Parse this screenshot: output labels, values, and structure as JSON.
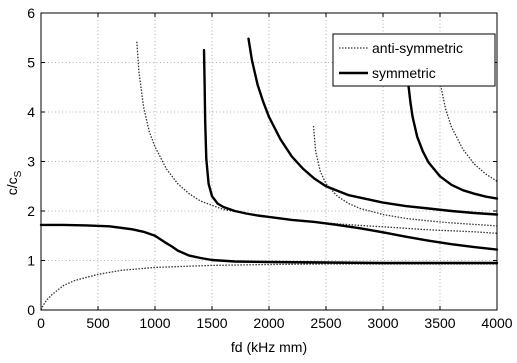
{
  "chart_data": {
    "type": "line",
    "xlabel": "fd (kHz mm)",
    "ylabel_main": "c/c",
    "ylabel_sub": "S",
    "xlim": [
      0,
      4000
    ],
    "ylim": [
      0,
      6
    ],
    "xticks": [
      0,
      500,
      1000,
      1500,
      2000,
      2500,
      3000,
      3500,
      4000
    ],
    "yticks": [
      0,
      1,
      2,
      3,
      4,
      5,
      6
    ],
    "grid": true,
    "legend_position": "top-right",
    "legend": [
      "anti-symmetric",
      "symmetric"
    ],
    "series": [
      {
        "name": "anti-symmetric",
        "style": "dotted",
        "x": [
          0,
          20,
          50,
          100,
          200,
          300,
          500,
          700,
          1000,
          1500,
          2000,
          2500,
          3000,
          3500,
          4000
        ],
        "y": [
          0,
          0.1,
          0.2,
          0.32,
          0.5,
          0.6,
          0.72,
          0.8,
          0.86,
          0.9,
          0.92,
          0.93,
          0.93,
          0.93,
          0.93
        ]
      },
      {
        "name": "anti-symmetric",
        "style": "dotted",
        "x": [
          840,
          860,
          900,
          950,
          1000,
          1100,
          1200,
          1300,
          1400,
          1600,
          1800,
          2000,
          2200,
          2400,
          2600,
          2800,
          3000,
          3200,
          3400,
          3600,
          3800,
          4000
        ],
        "y": [
          5.42,
          4.8,
          4.1,
          3.6,
          3.3,
          2.85,
          2.55,
          2.35,
          2.2,
          2.03,
          1.95,
          1.88,
          1.82,
          1.78,
          1.74,
          1.71,
          1.68,
          1.65,
          1.62,
          1.6,
          1.58,
          1.55
        ]
      },
      {
        "name": "anti-symmetric",
        "style": "dotted",
        "x": [
          2390,
          2410,
          2450,
          2500,
          2600,
          2700,
          2800,
          3000,
          3200,
          3400,
          3600,
          3800,
          4000
        ],
        "y": [
          3.72,
          3.2,
          2.8,
          2.55,
          2.3,
          2.15,
          2.05,
          1.93,
          1.85,
          1.8,
          1.76,
          1.73,
          1.7
        ]
      },
      {
        "name": "anti-symmetric",
        "style": "dotted",
        "x": [
          3500,
          3550,
          3600,
          3700,
          3800,
          3900,
          4000
        ],
        "y": [
          4.6,
          4.05,
          3.7,
          3.25,
          2.95,
          2.75,
          2.6
        ]
      },
      {
        "name": "symmetric",
        "style": "solid",
        "x": [
          0,
          200,
          400,
          600,
          800,
          900,
          1000,
          1100,
          1150,
          1200,
          1300,
          1400,
          1500,
          1700,
          2000,
          2500,
          3000,
          3500,
          4000
        ],
        "y": [
          1.72,
          1.72,
          1.71,
          1.69,
          1.63,
          1.58,
          1.5,
          1.35,
          1.28,
          1.2,
          1.1,
          1.05,
          1.01,
          0.98,
          0.97,
          0.96,
          0.95,
          0.95,
          0.95
        ]
      },
      {
        "name": "symmetric",
        "style": "solid",
        "x": [
          1430,
          1435,
          1440,
          1450,
          1470,
          1500,
          1550,
          1600,
          1700,
          1800,
          1900,
          2000,
          2200,
          2400,
          2600,
          2800,
          3000,
          3200,
          3400,
          3600,
          3800,
          4000
        ],
        "y": [
          5.25,
          4.6,
          3.8,
          3.05,
          2.55,
          2.3,
          2.15,
          2.08,
          2.0,
          1.95,
          1.91,
          1.88,
          1.82,
          1.78,
          1.72,
          1.65,
          1.57,
          1.48,
          1.4,
          1.33,
          1.27,
          1.22
        ]
      },
      {
        "name": "symmetric",
        "style": "solid",
        "x": [
          1820,
          1850,
          1900,
          1950,
          2000,
          2100,
          2200,
          2300,
          2400,
          2500,
          2700,
          3000,
          3200,
          3400,
          3600,
          3800,
          4000
        ],
        "y": [
          5.48,
          5.05,
          4.55,
          4.2,
          3.9,
          3.45,
          3.1,
          2.85,
          2.65,
          2.5,
          2.32,
          2.17,
          2.1,
          2.05,
          2.0,
          1.96,
          1.93
        ]
      },
      {
        "name": "symmetric",
        "style": "solid",
        "x": [
          3220,
          3240,
          3260,
          3300,
          3350,
          3400,
          3500,
          3600,
          3700,
          3800,
          3900,
          4000
        ],
        "y": [
          4.6,
          4.2,
          3.9,
          3.5,
          3.2,
          2.98,
          2.7,
          2.53,
          2.42,
          2.35,
          2.29,
          2.25
        ]
      }
    ]
  }
}
